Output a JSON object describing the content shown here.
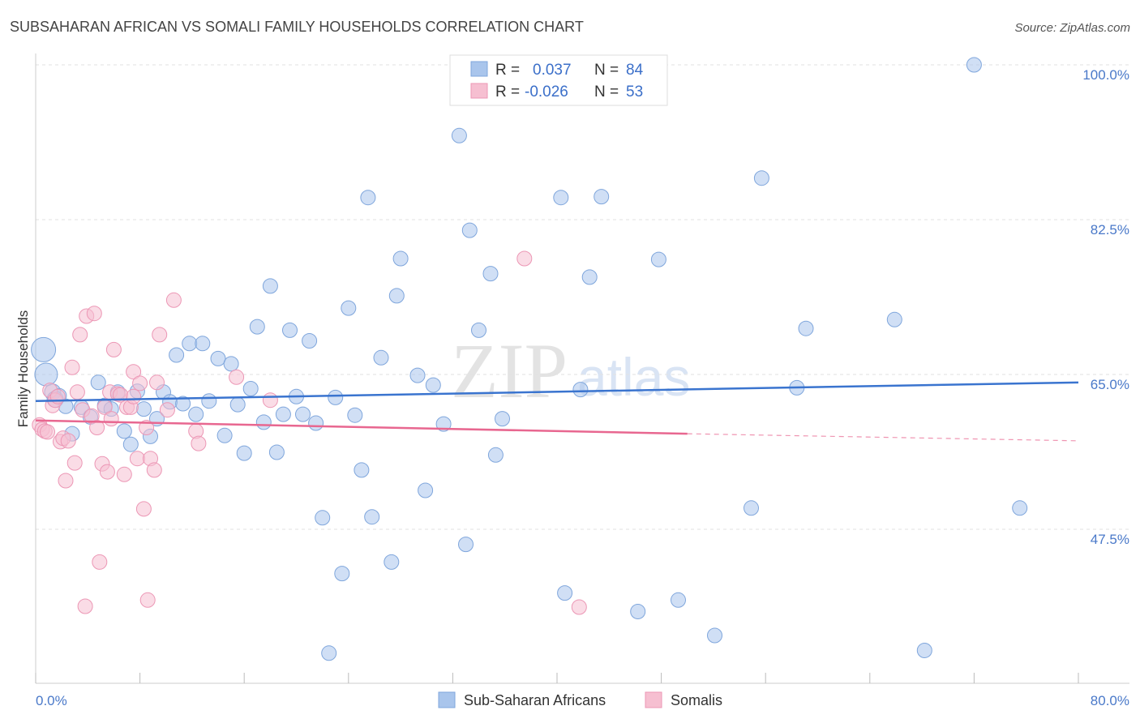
{
  "chart_data": {
    "type": "scatter",
    "title": "SUBSAHARAN AFRICAN VS SOMALI FAMILY HOUSEHOLDS CORRELATION CHART",
    "source": "Source: ZipAtlas.com",
    "ylabel": "Family Households",
    "xlim": [
      0,
      80
    ],
    "ylim": [
      33,
      101.5
    ],
    "y_ticks": [
      47.5,
      65.0,
      82.5,
      100.0
    ],
    "y_tick_labels": [
      "47.5%",
      "65.0%",
      "82.5%",
      "100.0%"
    ],
    "x_tick_labels": [
      "0.0%",
      "80.0%"
    ],
    "grid": "horizontal dashed",
    "watermark": {
      "text1": "ZIP",
      "text2": "atlas"
    },
    "legend_top": {
      "rows": [
        {
          "r_label": "R =",
          "r_value": "0.037",
          "n_label": "N =",
          "n_value": "84"
        },
        {
          "r_label": "R =",
          "r_value": "-0.026",
          "n_label": "N =",
          "n_value": "53"
        }
      ]
    },
    "series": [
      {
        "name": "Sub-Saharan Africans",
        "color": "#a9c5ec",
        "stroke": "#7fa6dc",
        "line_color": "#3a74cf",
        "trend": {
          "x0": 0,
          "y0": 62.0,
          "x1": 80,
          "y1": 64.1
        },
        "points": [
          [
            0.6,
            67.8,
            15
          ],
          [
            0.8,
            65.0,
            14
          ],
          [
            1.3,
            63.0,
            10
          ],
          [
            1.5,
            62.2,
            10
          ],
          [
            1.8,
            62.6,
            9
          ],
          [
            2.3,
            61.4,
            9
          ],
          [
            2.8,
            58.3,
            9
          ],
          [
            3.5,
            61.3,
            9
          ],
          [
            4.2,
            60.2,
            9
          ],
          [
            4.8,
            64.1,
            9
          ],
          [
            5.3,
            61.5,
            9
          ],
          [
            5.8,
            61.1,
            9
          ],
          [
            6.3,
            63.0,
            9
          ],
          [
            6.8,
            58.6,
            9
          ],
          [
            7.3,
            57.1,
            9
          ],
          [
            7.8,
            63.1,
            9
          ],
          [
            8.3,
            61.1,
            9
          ],
          [
            8.8,
            58.0,
            9
          ],
          [
            9.3,
            60.0,
            9
          ],
          [
            9.8,
            63.0,
            9
          ],
          [
            10.3,
            61.9,
            9
          ],
          [
            10.8,
            67.2,
            9
          ],
          [
            11.3,
            61.7,
            9
          ],
          [
            11.8,
            68.5,
            9
          ],
          [
            12.3,
            60.5,
            9
          ],
          [
            12.8,
            68.5,
            9
          ],
          [
            13.3,
            62.0,
            9
          ],
          [
            14.0,
            66.8,
            9
          ],
          [
            14.5,
            58.1,
            9
          ],
          [
            15.0,
            66.2,
            9
          ],
          [
            15.5,
            61.6,
            9
          ],
          [
            16.0,
            56.1,
            9
          ],
          [
            16.5,
            63.4,
            9
          ],
          [
            17.0,
            70.4,
            9
          ],
          [
            17.5,
            59.6,
            9
          ],
          [
            18.0,
            75.0,
            9
          ],
          [
            18.5,
            56.2,
            9
          ],
          [
            19.0,
            60.5,
            9
          ],
          [
            19.5,
            70.0,
            9
          ],
          [
            20.0,
            62.5,
            9
          ],
          [
            20.5,
            60.5,
            9
          ],
          [
            21.0,
            68.8,
            9
          ],
          [
            21.5,
            59.5,
            9
          ],
          [
            22.0,
            48.8,
            9
          ],
          [
            22.5,
            33.5,
            9
          ],
          [
            23.0,
            62.4,
            9
          ],
          [
            23.5,
            42.5,
            9
          ],
          [
            24.0,
            72.5,
            9
          ],
          [
            24.5,
            60.4,
            9
          ],
          [
            25.0,
            54.2,
            9
          ],
          [
            25.5,
            85.0,
            9
          ],
          [
            25.8,
            48.9,
            9
          ],
          [
            26.5,
            66.9,
            9
          ],
          [
            27.3,
            43.8,
            9
          ],
          [
            27.7,
            73.9,
            9
          ],
          [
            28.0,
            78.1,
            9
          ],
          [
            29.3,
            64.9,
            9
          ],
          [
            29.9,
            51.9,
            9
          ],
          [
            30.5,
            63.8,
            9
          ],
          [
            31.3,
            59.4,
            9
          ],
          [
            32.5,
            92.0,
            9
          ],
          [
            33.0,
            45.8,
            9
          ],
          [
            33.3,
            81.3,
            9
          ],
          [
            34.0,
            70.0,
            9
          ],
          [
            34.9,
            76.4,
            9
          ],
          [
            35.3,
            55.9,
            9
          ],
          [
            35.8,
            60.0,
            9
          ],
          [
            40.3,
            85.0,
            9
          ],
          [
            40.6,
            40.3,
            9
          ],
          [
            41.8,
            63.3,
            9
          ],
          [
            42.5,
            76.0,
            9
          ],
          [
            43.4,
            85.1,
            9
          ],
          [
            46.2,
            38.2,
            9
          ],
          [
            47.8,
            78.0,
            9
          ],
          [
            49.3,
            39.5,
            9
          ],
          [
            52.1,
            35.5,
            9
          ],
          [
            54.9,
            49.9,
            9
          ],
          [
            55.7,
            87.2,
            9
          ],
          [
            58.4,
            63.5,
            9
          ],
          [
            59.1,
            70.2,
            9
          ],
          [
            65.9,
            71.2,
            9
          ],
          [
            68.2,
            33.8,
            9
          ],
          [
            72.0,
            100.0,
            9
          ],
          [
            75.5,
            49.9,
            9
          ]
        ]
      },
      {
        "name": "Somalis",
        "color": "#f6bfd1",
        "stroke": "#ec97b5",
        "line_color": "#e86790",
        "trend": {
          "x0": 0,
          "y0": 59.8,
          "x1": 50,
          "y1": 58.3,
          "x2": 80,
          "y2": 57.5
        },
        "points": [
          [
            0.3,
            59.3,
            9
          ],
          [
            0.5,
            58.8,
            9
          ],
          [
            0.7,
            58.6,
            9
          ],
          [
            0.9,
            58.5,
            9
          ],
          [
            1.1,
            63.2,
            9
          ],
          [
            1.3,
            61.5,
            9
          ],
          [
            1.5,
            62.1,
            9
          ],
          [
            1.7,
            62.5,
            9
          ],
          [
            1.9,
            57.4,
            9
          ],
          [
            2.1,
            57.8,
            9
          ],
          [
            2.3,
            53.0,
            9
          ],
          [
            2.5,
            57.5,
            9
          ],
          [
            2.8,
            65.8,
            9
          ],
          [
            3.0,
            55.0,
            9
          ],
          [
            3.2,
            63.0,
            9
          ],
          [
            3.4,
            69.5,
            9
          ],
          [
            3.6,
            61.0,
            9
          ],
          [
            3.8,
            38.8,
            9
          ],
          [
            3.9,
            71.6,
            9
          ],
          [
            4.3,
            60.3,
            9
          ],
          [
            4.5,
            71.9,
            9
          ],
          [
            4.7,
            59.0,
            9
          ],
          [
            4.9,
            43.8,
            9
          ],
          [
            5.1,
            54.9,
            9
          ],
          [
            5.3,
            61.3,
            9
          ],
          [
            5.5,
            54.0,
            9
          ],
          [
            5.7,
            63.0,
            9
          ],
          [
            5.8,
            60.0,
            9
          ],
          [
            6.0,
            67.8,
            9
          ],
          [
            6.3,
            62.8,
            9
          ],
          [
            6.5,
            62.7,
            9
          ],
          [
            6.8,
            53.7,
            9
          ],
          [
            7.0,
            61.3,
            9
          ],
          [
            7.3,
            61.3,
            9
          ],
          [
            7.5,
            65.3,
            9
          ],
          [
            7.8,
            55.5,
            9
          ],
          [
            8.0,
            64.0,
            9
          ],
          [
            8.3,
            49.8,
            9
          ],
          [
            8.5,
            59.0,
            9
          ],
          [
            8.6,
            39.5,
            9
          ],
          [
            8.8,
            55.5,
            9
          ],
          [
            9.1,
            54.2,
            9
          ],
          [
            9.3,
            64.1,
            9
          ],
          [
            9.5,
            69.5,
            9
          ],
          [
            10.1,
            61.0,
            9
          ],
          [
            10.6,
            73.4,
            9
          ],
          [
            12.3,
            58.6,
            9
          ],
          [
            12.5,
            57.2,
            9
          ],
          [
            15.4,
            64.7,
            9
          ],
          [
            18.0,
            62.1,
            9
          ],
          [
            37.5,
            78.1,
            9
          ],
          [
            41.7,
            38.7,
            9
          ],
          [
            7.5,
            62.5,
            9
          ]
        ]
      }
    ]
  }
}
